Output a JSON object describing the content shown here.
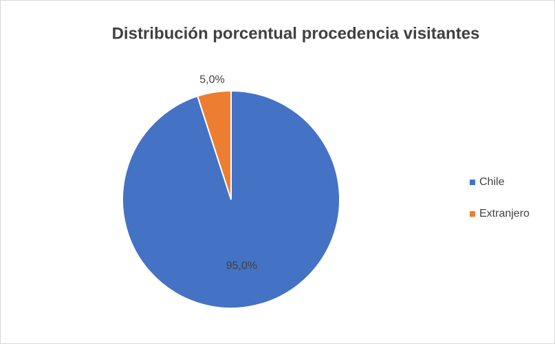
{
  "chart_data": {
    "type": "pie",
    "title": "Distribución porcentual procedencia visitantes",
    "categories": [
      "Chile",
      "Extranjero"
    ],
    "values": [
      95,
      5
    ],
    "value_labels": [
      "95,0%",
      "5,0%"
    ],
    "colors": [
      "#4472c4",
      "#ed7d31"
    ],
    "legend": "right"
  }
}
